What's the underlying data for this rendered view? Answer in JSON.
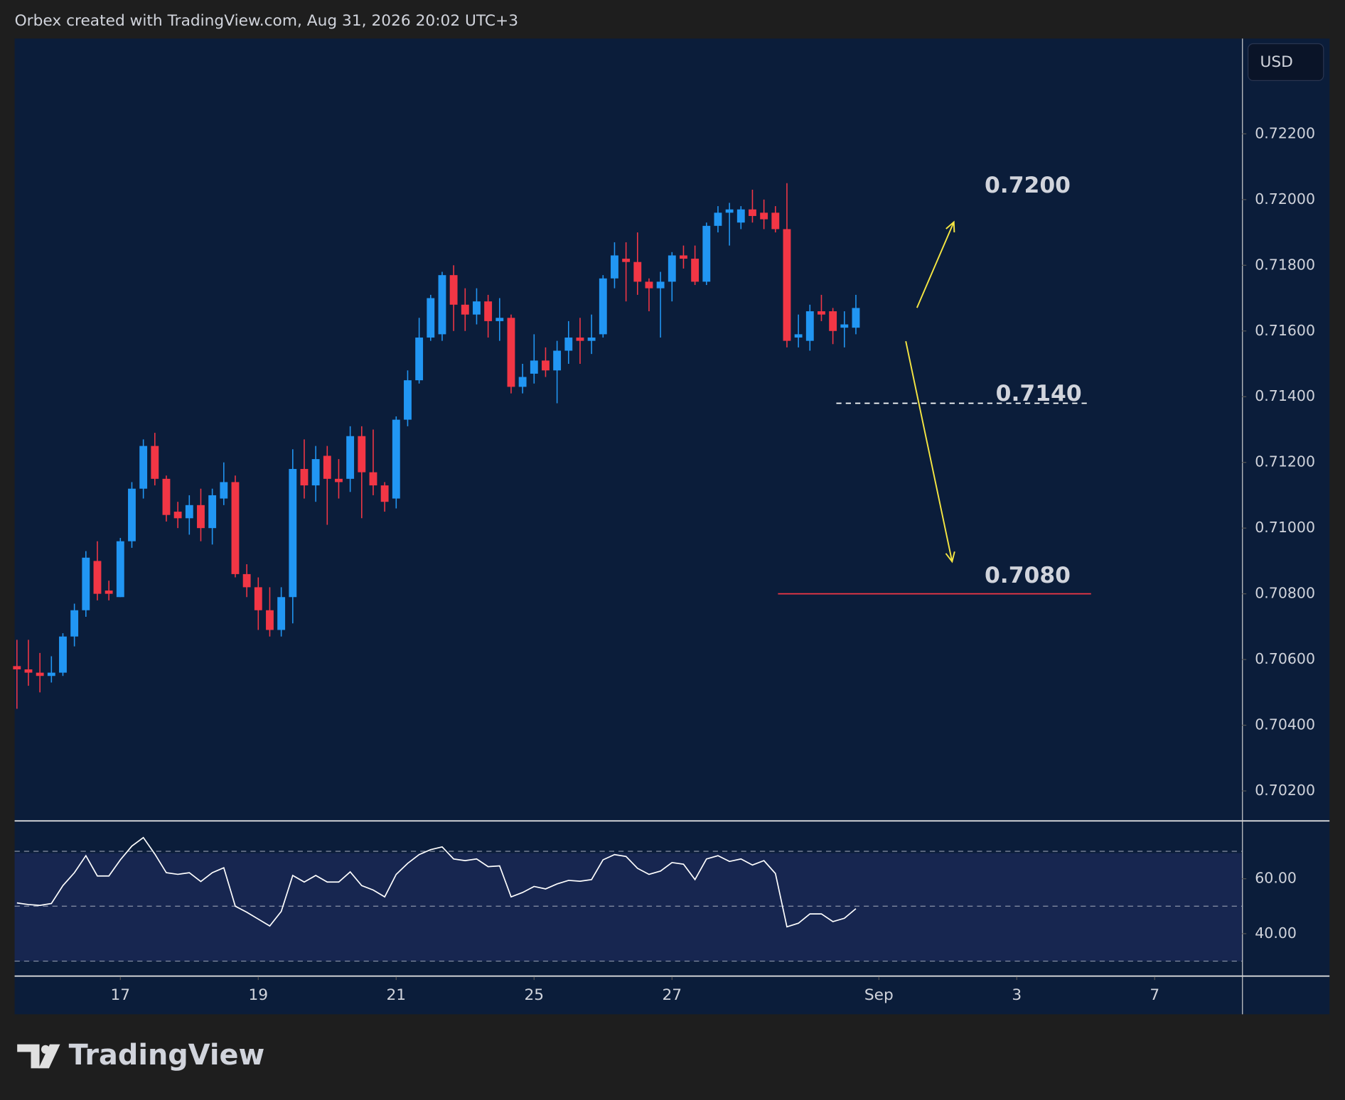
{
  "header": "Orbex created with TradingView.com, Aug 31, 2026 20:02 UTC+3",
  "currency": "USD",
  "brand": "TradingView",
  "chart_data": [
    {
      "type": "candlestick",
      "open": [
        0.7058,
        0.7057,
        0.7056,
        0.7055,
        0.7056,
        0.7067,
        0.7075,
        0.709,
        0.7081,
        0.7079,
        0.7096,
        0.7112,
        0.7125,
        0.7115,
        0.7105,
        0.7103,
        0.7107,
        0.71,
        0.7109,
        0.7114,
        0.7086,
        0.7082,
        0.7075,
        0.7069,
        0.7079,
        0.7118,
        0.7113,
        0.7122,
        0.7115,
        0.7115,
        0.7128,
        0.7117,
        0.7113,
        0.7109,
        0.7133,
        0.7145,
        0.7158,
        0.7159,
        0.7177,
        0.7168,
        0.7165,
        0.7169,
        0.7163,
        0.7164,
        0.7143,
        0.7147,
        0.7151,
        0.7148,
        0.7154,
        0.7158,
        0.7157,
        0.7159,
        0.7176,
        0.7182,
        0.7181,
        0.7175,
        0.7173,
        0.7175,
        0.7183,
        0.7182,
        0.7175,
        0.7192,
        0.7196,
        0.7193,
        0.7197,
        0.7196,
        0.7196,
        0.7191,
        0.7158,
        0.7157,
        0.7166,
        0.7166,
        0.7161,
        0.7161
      ],
      "high": [
        0.7066,
        0.7066,
        0.7062,
        0.7061,
        0.7068,
        0.7077,
        0.7093,
        0.7096,
        0.7084,
        0.7097,
        0.7114,
        0.7127,
        0.7129,
        0.7116,
        0.7108,
        0.711,
        0.7112,
        0.7112,
        0.712,
        0.7116,
        0.7089,
        0.7085,
        0.7082,
        0.7082,
        0.7124,
        0.7127,
        0.7125,
        0.7125,
        0.7121,
        0.7131,
        0.7131,
        0.713,
        0.7114,
        0.7134,
        0.7148,
        0.7164,
        0.7171,
        0.7178,
        0.718,
        0.7173,
        0.7173,
        0.7171,
        0.717,
        0.7165,
        0.715,
        0.7159,
        0.7155,
        0.7157,
        0.7163,
        0.7164,
        0.7165,
        0.7177,
        0.7187,
        0.7187,
        0.719,
        0.7176,
        0.7178,
        0.7184,
        0.7186,
        0.7186,
        0.7193,
        0.7198,
        0.7199,
        0.7198,
        0.7203,
        0.72,
        0.7198,
        0.7205,
        0.7165,
        0.7168,
        0.7171,
        0.7167,
        0.7166,
        0.7171
      ],
      "low": [
        0.7045,
        0.7052,
        0.705,
        0.7053,
        0.7055,
        0.7064,
        0.7073,
        0.7078,
        0.7078,
        0.7079,
        0.7094,
        0.7109,
        0.7113,
        0.7102,
        0.71,
        0.7098,
        0.7096,
        0.7095,
        0.7107,
        0.7085,
        0.7079,
        0.7069,
        0.7067,
        0.7067,
        0.7071,
        0.7109,
        0.7108,
        0.7101,
        0.7109,
        0.7111,
        0.7103,
        0.711,
        0.7105,
        0.7106,
        0.7131,
        0.7144,
        0.7157,
        0.7157,
        0.716,
        0.716,
        0.7162,
        0.7158,
        0.7157,
        0.7141,
        0.7141,
        0.7144,
        0.7146,
        0.7138,
        0.715,
        0.715,
        0.7153,
        0.7158,
        0.7173,
        0.7169,
        0.7171,
        0.7166,
        0.7158,
        0.7169,
        0.7179,
        0.7174,
        0.7174,
        0.719,
        0.7186,
        0.7191,
        0.7193,
        0.7191,
        0.719,
        0.7155,
        0.7155,
        0.7154,
        0.7163,
        0.7156,
        0.7155,
        0.7159
      ],
      "close": [
        0.7057,
        0.7056,
        0.7055,
        0.7056,
        0.7067,
        0.7075,
        0.7091,
        0.708,
        0.708,
        0.7096,
        0.7112,
        0.7125,
        0.7115,
        0.7104,
        0.7103,
        0.7107,
        0.71,
        0.711,
        0.7114,
        0.7086,
        0.7082,
        0.7075,
        0.7069,
        0.7079,
        0.7118,
        0.7113,
        0.7121,
        0.7115,
        0.7114,
        0.7128,
        0.7117,
        0.7113,
        0.7108,
        0.7133,
        0.7145,
        0.7158,
        0.717,
        0.7177,
        0.7168,
        0.7165,
        0.7169,
        0.7163,
        0.7164,
        0.7143,
        0.7146,
        0.7151,
        0.7148,
        0.7154,
        0.7158,
        0.7157,
        0.7158,
        0.7176,
        0.7183,
        0.7181,
        0.7175,
        0.7173,
        0.7175,
        0.7183,
        0.7182,
        0.7175,
        0.7192,
        0.7196,
        0.7197,
        0.7197,
        0.7195,
        0.7194,
        0.7191,
        0.7157,
        0.7159,
        0.7166,
        0.7165,
        0.716,
        0.7162,
        0.7167
      ],
      "up_color": "#2196f3",
      "down_color": "#f23645",
      "xlim": [
        -0.2,
        106.6
      ],
      "ylim": [
        0.7011,
        0.7249
      ],
      "yticks": [
        {
          "value": 0.702,
          "label": "0.70200"
        },
        {
          "value": 0.704,
          "label": "0.70400"
        },
        {
          "value": 0.706,
          "label": "0.70600"
        },
        {
          "value": 0.708,
          "label": "0.70800"
        },
        {
          "value": 0.71,
          "label": "0.71000"
        },
        {
          "value": 0.712,
          "label": "0.71200"
        },
        {
          "value": 0.714,
          "label": "0.71400"
        },
        {
          "value": 0.716,
          "label": "0.71600"
        },
        {
          "value": 0.718,
          "label": "0.71800"
        },
        {
          "value": 0.72,
          "label": "0.72000"
        },
        {
          "value": 0.722,
          "label": "0.72200"
        }
      ],
      "annotations": [
        {
          "text": "0.7200"
        },
        {
          "text": "0.7140",
          "level": 0.7138,
          "color": "#ffffff",
          "style": "dashed"
        },
        {
          "text": "0.7080",
          "level": 0.708,
          "color": "#f23645",
          "style": "solid"
        }
      ]
    },
    {
      "type": "line",
      "values": [
        51.2,
        50.6,
        50.3,
        51,
        57.5,
        62.2,
        68.4,
        61,
        61,
        66.9,
        71.9,
        75,
        69,
        62.2,
        61.6,
        62.2,
        59,
        62.2,
        64,
        50,
        47.8,
        45.3,
        42.8,
        48.1,
        61.2,
        58.8,
        61.2,
        58.8,
        58.8,
        62.5,
        57.5,
        55.9,
        53.4,
        61.6,
        65.6,
        68.8,
        70.6,
        71.6,
        67.2,
        66.6,
        67.2,
        64.4,
        64.7,
        53.4,
        55,
        57.2,
        56.3,
        58.1,
        59.4,
        59.1,
        59.7,
        66.9,
        68.8,
        68.1,
        63.8,
        61.6,
        62.8,
        65.9,
        65.3,
        59.7,
        67.2,
        68.4,
        66.3,
        67.2,
        65,
        66.6,
        61.9,
        42.5,
        43.8,
        47.2,
        47.2,
        44.4,
        45.6,
        49.1
      ],
      "color": "#ffffff",
      "xlim": [
        -0.2,
        106.6
      ],
      "xticks": [
        {
          "value": 9,
          "label": "17"
        },
        {
          "value": 21,
          "label": "19"
        },
        {
          "value": 33,
          "label": "21"
        },
        {
          "value": 45,
          "label": "25"
        },
        {
          "value": 57,
          "label": "27"
        },
        {
          "value": 75,
          "label": "Sep"
        },
        {
          "value": 87,
          "label": "3"
        },
        {
          "value": 99,
          "label": "7"
        }
      ],
      "ylim": [
        24.7,
        80.9
      ],
      "yticks": [
        {
          "value": 40,
          "label": "40.00"
        },
        {
          "value": 60,
          "label": "60.00"
        }
      ],
      "levels": [
        30,
        50,
        70
      ]
    }
  ]
}
